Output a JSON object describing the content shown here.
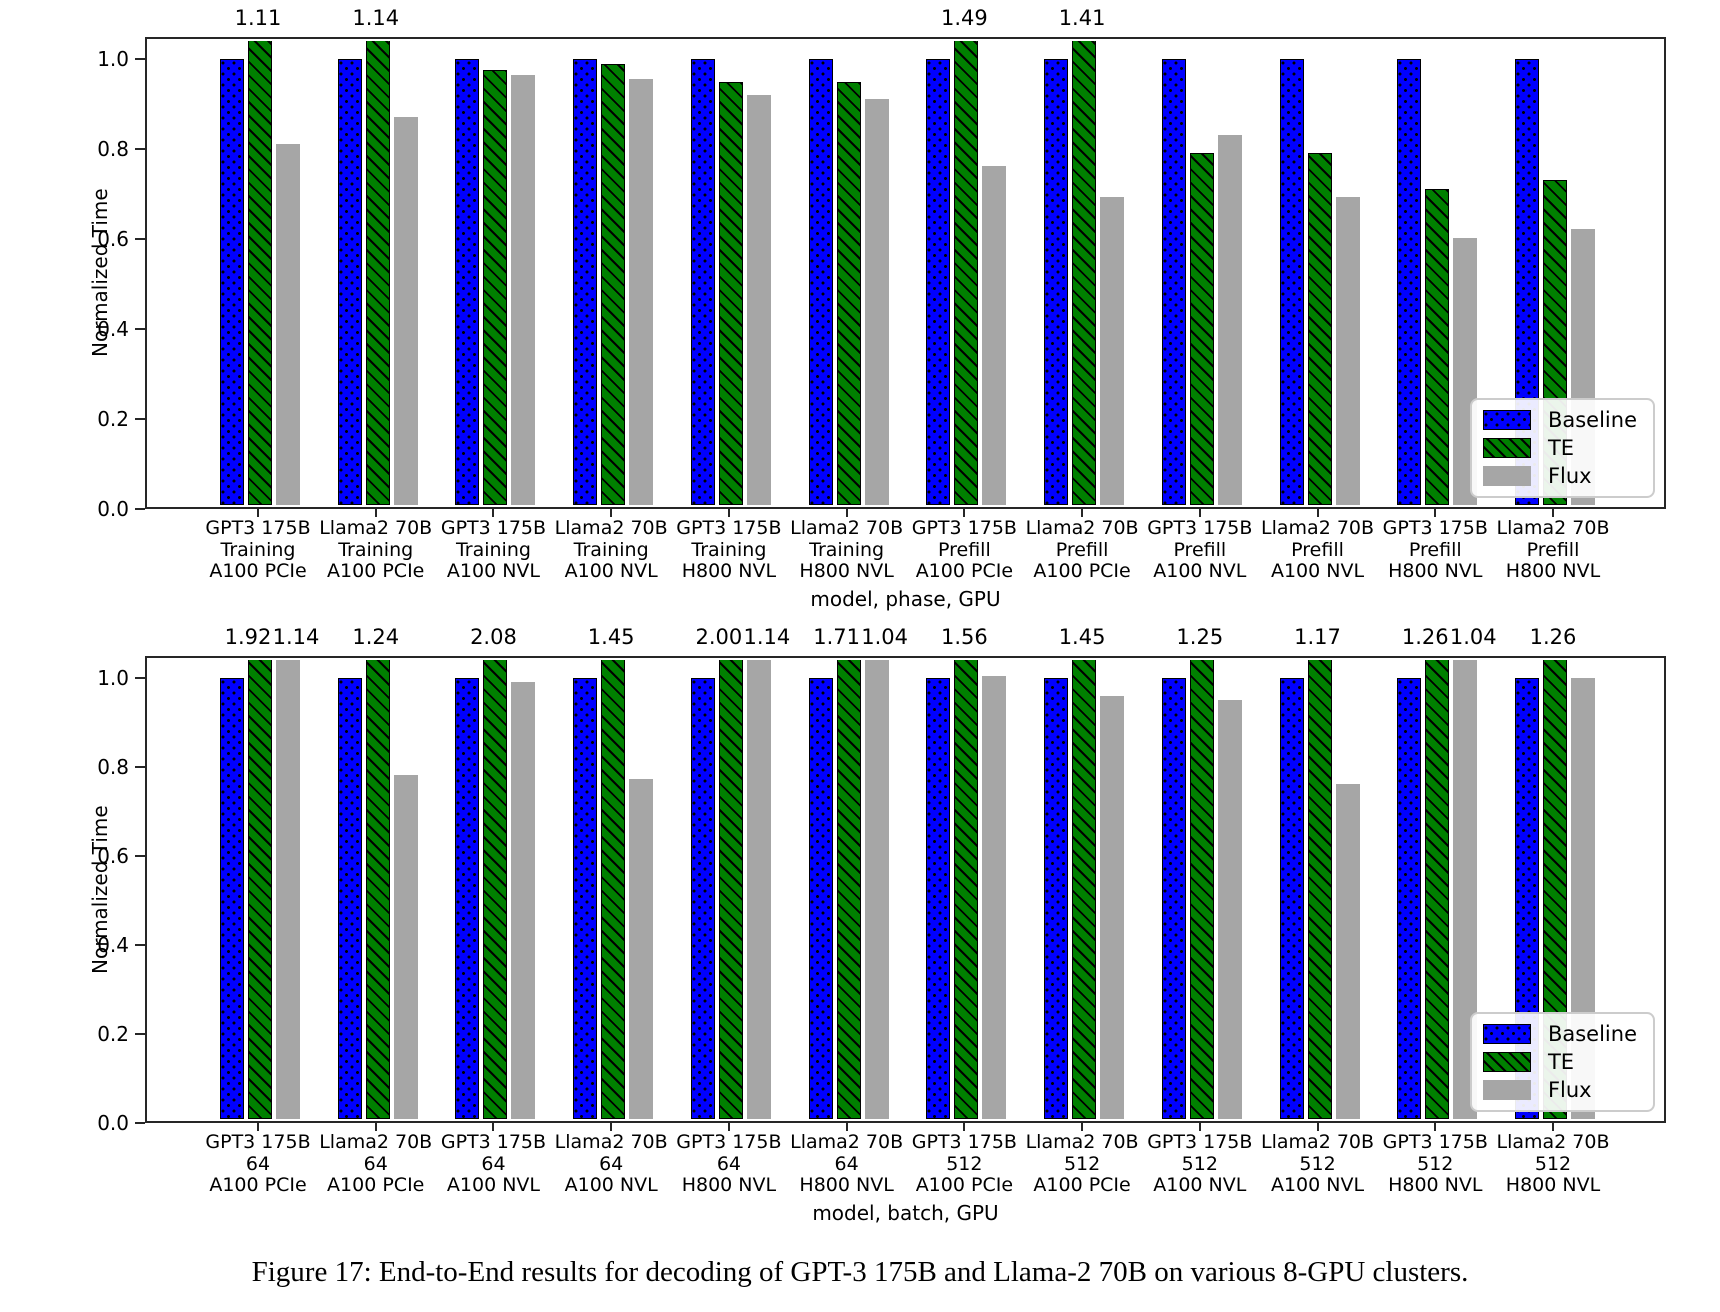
{
  "figure": {
    "caption": "Figure 17: End-to-End results for decoding of GPT-3 175B and Llama-2 70B on various 8-GPU clusters."
  },
  "colors": {
    "baseline": "#0000ff",
    "te": "#008000",
    "flux": "#a6a6a6",
    "hatch": "#000000",
    "axis": "#262626"
  },
  "chart_data": [
    {
      "type": "bar",
      "title": "",
      "ylabel": "Normalized Time",
      "xlabel": "model, phase, GPU",
      "ylim": [
        0,
        1.05
      ],
      "yticks": [
        "0.0",
        "0.2",
        "0.4",
        "0.6",
        "0.8",
        "1.0"
      ],
      "grid": false,
      "legend": [
        "Baseline",
        "TE",
        "Flux"
      ],
      "legend_position": "lower right",
      "series_order": [
        "Baseline",
        "TE",
        "Flux"
      ],
      "clip_note": "bars taller than 1.05 are clipped at the axis top and annotated with their value",
      "groups": [
        {
          "label": [
            "GPT3 175B",
            "Training",
            "A100 PCIe"
          ],
          "values": [
            1.0,
            1.11,
            0.81
          ],
          "annotations": [
            "",
            "1.11",
            ""
          ]
        },
        {
          "label": [
            "Llama2 70B",
            "Training",
            "A100 PCIe"
          ],
          "values": [
            1.0,
            1.14,
            0.87
          ],
          "annotations": [
            "",
            "1.14",
            ""
          ]
        },
        {
          "label": [
            "GPT3 175B",
            "Training",
            "A100 NVL"
          ],
          "values": [
            1.0,
            0.975,
            0.965
          ],
          "annotations": [
            "",
            "",
            ""
          ]
        },
        {
          "label": [
            "Llama2 70B",
            "Training",
            "A100 NVL"
          ],
          "values": [
            1.0,
            0.99,
            0.955
          ],
          "annotations": [
            "",
            "",
            ""
          ]
        },
        {
          "label": [
            "GPT3 175B",
            "Training",
            "H800 NVL"
          ],
          "values": [
            1.0,
            0.95,
            0.92
          ],
          "annotations": [
            "",
            "",
            ""
          ]
        },
        {
          "label": [
            "Llama2 70B",
            "Training",
            "H800 NVL"
          ],
          "values": [
            1.0,
            0.95,
            0.91
          ],
          "annotations": [
            "",
            "",
            ""
          ]
        },
        {
          "label": [
            "GPT3 175B",
            "Prefill",
            "A100 PCIe"
          ],
          "values": [
            1.0,
            1.49,
            0.76
          ],
          "annotations": [
            "",
            "1.49",
            ""
          ]
        },
        {
          "label": [
            "Llama2 70B",
            "Prefill",
            "A100 PCIe"
          ],
          "values": [
            1.0,
            1.41,
            0.69
          ],
          "annotations": [
            "",
            "1.41",
            ""
          ]
        },
        {
          "label": [
            "GPT3 175B",
            "Prefill",
            "A100 NVL"
          ],
          "values": [
            1.0,
            0.79,
            0.83
          ],
          "annotations": [
            "",
            "",
            ""
          ]
        },
        {
          "label": [
            "Llama2 70B",
            "Prefill",
            "A100 NVL"
          ],
          "values": [
            1.0,
            0.79,
            0.69
          ],
          "annotations": [
            "",
            "",
            ""
          ]
        },
        {
          "label": [
            "GPT3 175B",
            "Prefill",
            "H800 NVL"
          ],
          "values": [
            1.0,
            0.71,
            0.6
          ],
          "annotations": [
            "",
            "",
            ""
          ]
        },
        {
          "label": [
            "Llama2 70B",
            "Prefill",
            "H800 NVL"
          ],
          "values": [
            1.0,
            0.73,
            0.62
          ],
          "annotations": [
            "",
            "",
            ""
          ]
        }
      ]
    },
    {
      "type": "bar",
      "title": "",
      "ylabel": "Normalized Time",
      "xlabel": "model, batch, GPU",
      "ylim": [
        0,
        1.05
      ],
      "yticks": [
        "0.0",
        "0.2",
        "0.4",
        "0.6",
        "0.8",
        "1.0"
      ],
      "grid": false,
      "legend": [
        "Baseline",
        "TE",
        "Flux"
      ],
      "legend_position": "lower right",
      "series_order": [
        "Baseline",
        "TE",
        "Flux"
      ],
      "clip_note": "bars taller than 1.05 are clipped at the axis top and annotated with their value",
      "groups": [
        {
          "label": [
            "GPT3 175B",
            "64",
            "A100 PCIe"
          ],
          "values": [
            1.0,
            1.92,
            1.14
          ],
          "annotations": [
            "",
            "1.92",
            "1.14"
          ]
        },
        {
          "label": [
            "Llama2 70B",
            "64",
            "A100 PCIe"
          ],
          "values": [
            1.0,
            1.24,
            0.78
          ],
          "annotations": [
            "",
            "1.24",
            ""
          ]
        },
        {
          "label": [
            "GPT3 175B",
            "64",
            "A100 NVL"
          ],
          "values": [
            1.0,
            2.08,
            0.99
          ],
          "annotations": [
            "",
            "2.08",
            ""
          ]
        },
        {
          "label": [
            "Llama2 70B",
            "64",
            "A100 NVL"
          ],
          "values": [
            1.0,
            1.45,
            0.77
          ],
          "annotations": [
            "",
            "1.45",
            ""
          ]
        },
        {
          "label": [
            "GPT3 175B",
            "64",
            "H800 NVL"
          ],
          "values": [
            1.0,
            2.0,
            1.14
          ],
          "annotations": [
            "",
            "2.00",
            "1.14"
          ]
        },
        {
          "label": [
            "Llama2 70B",
            "64",
            "H800 NVL"
          ],
          "values": [
            1.0,
            1.71,
            1.04
          ],
          "annotations": [
            "",
            "1.71",
            "1.04"
          ]
        },
        {
          "label": [
            "GPT3 175B",
            "512",
            "A100 PCIe"
          ],
          "values": [
            1.0,
            1.56,
            1.005
          ],
          "annotations": [
            "",
            "1.56",
            ""
          ]
        },
        {
          "label": [
            "Llama2 70B",
            "512",
            "A100 PCIe"
          ],
          "values": [
            1.0,
            1.45,
            0.96
          ],
          "annotations": [
            "",
            "1.45",
            ""
          ]
        },
        {
          "label": [
            "GPT3 175B",
            "512",
            "A100 NVL"
          ],
          "values": [
            1.0,
            1.25,
            0.95
          ],
          "annotations": [
            "",
            "1.25",
            ""
          ]
        },
        {
          "label": [
            "Llama2 70B",
            "512",
            "A100 NVL"
          ],
          "values": [
            1.0,
            1.17,
            0.76
          ],
          "annotations": [
            "",
            "1.17",
            ""
          ]
        },
        {
          "label": [
            "GPT3 175B",
            "512",
            "H800 NVL"
          ],
          "values": [
            1.0,
            1.26,
            1.04
          ],
          "annotations": [
            "",
            "1.26",
            "1.04"
          ]
        },
        {
          "label": [
            "Llama2 70B",
            "512",
            "H800 NVL"
          ],
          "values": [
            1.0,
            1.26,
            1.0
          ],
          "annotations": [
            "",
            "1.26",
            ""
          ]
        }
      ]
    }
  ]
}
